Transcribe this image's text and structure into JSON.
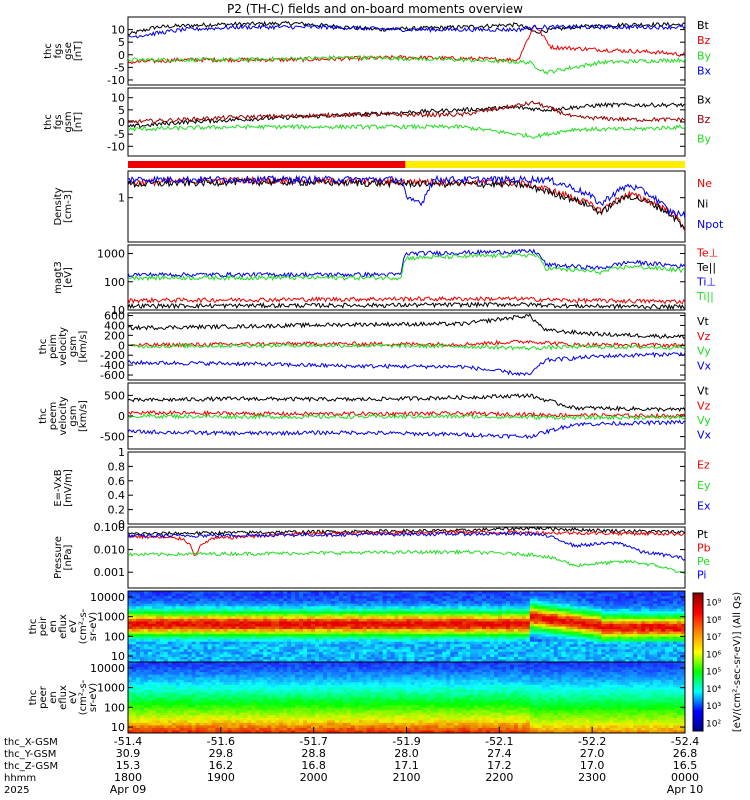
{
  "title": "P2 (TH-C) fields and on-board moments overview",
  "colors": {
    "black": "#000000",
    "red": "#ee0000",
    "green": "#22dd22",
    "blue": "#0000ee",
    "dark_red": "#990000",
    "yellow": "#ffee00"
  },
  "chart_data": [
    {
      "type": "line",
      "name": "fgs_gse",
      "ylabel": [
        "thc",
        "fgs",
        "gse",
        "[nT]"
      ],
      "ylim": [
        -12,
        15
      ],
      "yticks": [
        -10,
        -5,
        0,
        5,
        10
      ],
      "series": [
        {
          "name": "Bt",
          "color": "black",
          "x": [
            0,
            0.05,
            0.15,
            0.3,
            0.45,
            0.6,
            0.7,
            0.73,
            0.8,
            0.9,
            1.0
          ],
          "y": [
            8,
            11,
            12,
            12.5,
            10,
            11,
            12,
            9,
            11,
            12,
            12
          ]
        },
        {
          "name": "Bz",
          "color": "red",
          "x": [
            0,
            0.1,
            0.3,
            0.5,
            0.7,
            0.73,
            0.76,
            0.85,
            0.95,
            1.0
          ],
          "y": [
            -3,
            -2,
            -2,
            -1,
            -2,
            12,
            3,
            2,
            1,
            0
          ]
        },
        {
          "name": "By",
          "color": "green",
          "x": [
            0,
            0.2,
            0.4,
            0.6,
            0.72,
            0.75,
            0.85,
            1.0
          ],
          "y": [
            -2,
            -2,
            -1,
            -2,
            -3,
            -7,
            -3,
            -2
          ]
        },
        {
          "name": "Bx",
          "color": "blue",
          "x": [
            0,
            0.1,
            0.2,
            0.35,
            0.5,
            0.7,
            0.73,
            0.8,
            0.9,
            1.0
          ],
          "y": [
            7,
            10,
            11,
            11,
            10,
            10,
            11,
            11,
            11,
            11
          ]
        }
      ]
    },
    {
      "type": "line",
      "name": "fgs_gsm",
      "ylabel": [
        "thc",
        "fgs",
        "gsm",
        "[nT]"
      ],
      "ylim": [
        -14,
        14
      ],
      "yticks": [
        -10,
        -5,
        0,
        5,
        10
      ],
      "series": [
        {
          "name": "Bx",
          "color": "black",
          "x": [
            0,
            0.1,
            0.3,
            0.5,
            0.7,
            0.75,
            0.85,
            1.0
          ],
          "y": [
            -2,
            0,
            2,
            4,
            6,
            5,
            7,
            7
          ]
        },
        {
          "name": "Bz",
          "color": "dark_red",
          "x": [
            0,
            0.2,
            0.4,
            0.6,
            0.73,
            0.8,
            0.9,
            1.0
          ],
          "y": [
            0,
            2,
            3,
            3,
            8,
            2,
            1,
            1
          ]
        },
        {
          "name": "By",
          "color": "green",
          "x": [
            0,
            0.2,
            0.4,
            0.6,
            0.73,
            0.8,
            0.9,
            1.0
          ],
          "y": [
            -3,
            -2,
            -2,
            -2,
            -6,
            -3,
            -3,
            -2
          ]
        }
      ]
    },
    {
      "type": "bar",
      "name": "mode_bar",
      "segments": [
        {
          "x0": 0,
          "x1": 0.498,
          "color": "red"
        },
        {
          "x0": 0.498,
          "x1": 1.0,
          "color": "yellow"
        }
      ]
    },
    {
      "type": "line",
      "name": "density",
      "ylabel": [
        "Density",
        "[cm-3]"
      ],
      "scale": "log",
      "ylim": [
        0.1,
        4
      ],
      "yticks": [
        1
      ],
      "series": [
        {
          "name": "Ne",
          "color": "red",
          "x": [
            0,
            0.2,
            0.5,
            0.7,
            0.78,
            0.85,
            0.9,
            1.0
          ],
          "y": [
            2.2,
            2.5,
            2.3,
            2.2,
            1.2,
            0.5,
            1.2,
            0.2
          ]
        },
        {
          "name": "Ni",
          "color": "black",
          "x": [
            0,
            0.2,
            0.5,
            0.7,
            0.78,
            0.85,
            0.9,
            1.0
          ],
          "y": [
            2.0,
            2.3,
            2.1,
            2.0,
            1.1,
            0.45,
            1.1,
            0.18
          ]
        },
        {
          "name": "Npot",
          "color": "blue",
          "x": [
            0,
            0.49,
            0.5,
            0.53,
            0.55,
            0.75,
            0.85,
            0.9,
            0.97,
            1.0
          ],
          "y": [
            2.6,
            2.6,
            0.9,
            0.8,
            2.6,
            2.6,
            0.7,
            1.9,
            0.5,
            0.4
          ]
        }
      ]
    },
    {
      "type": "line",
      "name": "temperature",
      "ylabel": [
        "magt3",
        "[eV]"
      ],
      "scale": "log",
      "ylim": [
        10,
        2000
      ],
      "yticks": [
        10,
        100,
        1000
      ],
      "series": [
        {
          "name": "Te⊥",
          "color": "red",
          "x": [
            0,
            0.5,
            0.7,
            0.8,
            1.0
          ],
          "y": [
            22,
            25,
            25,
            22,
            20
          ]
        },
        {
          "name": "Te||",
          "color": "black",
          "x": [
            0,
            0.5,
            0.7,
            0.8,
            1.0
          ],
          "y": [
            14,
            15,
            16,
            14,
            13
          ]
        },
        {
          "name": "Ti⊥",
          "color": "blue",
          "x": [
            0,
            0.49,
            0.5,
            0.73,
            0.75,
            0.85,
            0.9,
            1.0
          ],
          "y": [
            180,
            180,
            1000,
            1200,
            400,
            300,
            500,
            350
          ]
        },
        {
          "name": "Ti||",
          "color": "green",
          "x": [
            0,
            0.49,
            0.5,
            0.73,
            0.75,
            0.85,
            0.9,
            1.0
          ],
          "y": [
            140,
            140,
            700,
            900,
            300,
            220,
            350,
            250
          ]
        }
      ]
    },
    {
      "type": "line",
      "name": "peim_velocity",
      "ylabel": [
        "thc",
        "peim",
        "velocity",
        "gsm",
        "[km/s]"
      ],
      "ylim": [
        -700,
        650
      ],
      "yticks": [
        -600,
        -400,
        -200,
        0,
        200,
        400,
        600
      ],
      "series": [
        {
          "name": "Vt",
          "color": "black",
          "x": [
            0,
            0.2,
            0.4,
            0.6,
            0.72,
            0.75,
            0.85,
            1.0
          ],
          "y": [
            350,
            380,
            420,
            430,
            600,
            300,
            220,
            170
          ]
        },
        {
          "name": "Vz",
          "color": "red",
          "x": [
            0,
            0.3,
            0.6,
            0.72,
            0.8,
            1.0
          ],
          "y": [
            0,
            30,
            20,
            80,
            10,
            0
          ]
        },
        {
          "name": "Vy",
          "color": "green",
          "x": [
            0,
            0.3,
            0.6,
            0.72,
            0.8,
            1.0
          ],
          "y": [
            -20,
            0,
            -20,
            -60,
            -30,
            -40
          ]
        },
        {
          "name": "Vx",
          "color": "blue",
          "x": [
            0,
            0.2,
            0.4,
            0.6,
            0.72,
            0.75,
            0.85,
            1.0
          ],
          "y": [
            -350,
            -370,
            -420,
            -430,
            -600,
            -300,
            -220,
            -170
          ]
        }
      ]
    },
    {
      "type": "line",
      "name": "peem_velocity",
      "ylabel": [
        "thc",
        "peem",
        "velocity",
        "gsm",
        "[km/s]"
      ],
      "ylim": [
        -800,
        800
      ],
      "yticks": [
        -500,
        0,
        500
      ],
      "series": [
        {
          "name": "Vt",
          "color": "black",
          "x": [
            0,
            0.2,
            0.4,
            0.6,
            0.72,
            0.8,
            1.0
          ],
          "y": [
            380,
            420,
            400,
            450,
            500,
            200,
            150
          ]
        },
        {
          "name": "Vz",
          "color": "red",
          "x": [
            0,
            0.3,
            0.6,
            0.8,
            1.0
          ],
          "y": [
            80,
            50,
            60,
            20,
            0
          ]
        },
        {
          "name": "Vy",
          "color": "green",
          "x": [
            0,
            0.3,
            0.6,
            0.8,
            1.0
          ],
          "y": [
            0,
            -20,
            -10,
            -40,
            -30
          ]
        },
        {
          "name": "Vx",
          "color": "blue",
          "x": [
            0,
            0.2,
            0.4,
            0.6,
            0.72,
            0.8,
            1.0
          ],
          "y": [
            -380,
            -420,
            -400,
            -450,
            -500,
            -200,
            -150
          ]
        }
      ]
    },
    {
      "type": "line",
      "name": "efield",
      "ylabel": [
        "E=-VxB",
        "[mV/m]"
      ],
      "ylim": [
        0,
        1.0
      ],
      "yticks": [
        0.0,
        0.2,
        0.4,
        0.6,
        0.8,
        1.0
      ],
      "series": [
        {
          "name": "Ez",
          "color": "red",
          "x": [],
          "y": []
        },
        {
          "name": "Ey",
          "color": "green",
          "x": [],
          "y": []
        },
        {
          "name": "Ex",
          "color": "blue",
          "x": [],
          "y": []
        }
      ]
    },
    {
      "type": "line",
      "name": "pressure",
      "ylabel": [
        "Pressure",
        "[nPa]"
      ],
      "scale": "log",
      "ylim": [
        0.0002,
        0.1
      ],
      "yticks": [
        0.001,
        0.01,
        0.1
      ],
      "ytick_labels": [
        "0.001",
        "0.010",
        "0.100"
      ],
      "series": [
        {
          "name": "Pt",
          "color": "black",
          "x": [
            0,
            0.3,
            0.6,
            0.73,
            0.85,
            1.0
          ],
          "y": [
            0.05,
            0.06,
            0.07,
            0.09,
            0.07,
            0.06
          ]
        },
        {
          "name": "Pb",
          "color": "red",
          "x": [
            0,
            0.1,
            0.12,
            0.15,
            0.3,
            0.6,
            1.0
          ],
          "y": [
            0.04,
            0.03,
            0.005,
            0.03,
            0.05,
            0.06,
            0.05
          ]
        },
        {
          "name": "Pe",
          "color": "green",
          "x": [
            0,
            0.3,
            0.6,
            0.73,
            0.8,
            0.9,
            1.0
          ],
          "y": [
            0.006,
            0.007,
            0.008,
            0.006,
            0.002,
            0.003,
            0.0008
          ]
        },
        {
          "name": "Pi",
          "color": "blue",
          "x": [
            0,
            0.3,
            0.6,
            0.73,
            0.8,
            0.88,
            0.92,
            1.0
          ],
          "y": [
            0.04,
            0.045,
            0.05,
            0.05,
            0.015,
            0.02,
            0.008,
            0.004
          ]
        }
      ]
    },
    {
      "type": "heatmap",
      "name": "peir_spectrogram",
      "ylabel": [
        "thc",
        "peir",
        "en",
        "eflux",
        "eV",
        "(cm²-s-",
        "sr-eV)"
      ],
      "scale": "log",
      "ylim": [
        5,
        20000
      ],
      "yticks": [
        10,
        100,
        1000,
        10000
      ]
    },
    {
      "type": "heatmap",
      "name": "peer_spectrogram",
      "ylabel": [
        "thc",
        "peer",
        "en",
        "eflux",
        "eV",
        "(cm²-s-",
        "sr-eV)"
      ],
      "scale": "log",
      "ylim": [
        5,
        20000
      ],
      "yticks": [
        10,
        100,
        1000,
        10000
      ]
    }
  ],
  "colorbar": {
    "label": "[eV/(cm²-sec-sr-eV)] (All Qs)",
    "ticks": [
      "10²",
      "10³",
      "10⁴",
      "10⁵",
      "10⁶",
      "10⁷",
      "10⁸",
      "10⁹"
    ]
  },
  "x_axis": {
    "row_labels": [
      "thc_X-GSM",
      "thc_Y-GSM",
      "thc_Z-GSM",
      "hhmm",
      "2025"
    ],
    "ticks": [
      {
        "x": -51.4,
        "y": 30.9,
        "z": 15.3,
        "hhmm": "1800",
        "date": "Apr 09"
      },
      {
        "x": -51.6,
        "y": 29.8,
        "z": 16.2,
        "hhmm": "1900",
        "date": ""
      },
      {
        "x": -51.7,
        "y": 28.8,
        "z": 16.8,
        "hhmm": "2000",
        "date": ""
      },
      {
        "x": -51.9,
        "y": 28.0,
        "z": 17.1,
        "hhmm": "2100",
        "date": ""
      },
      {
        "x": -52.1,
        "y": 27.4,
        "z": 17.2,
        "hhmm": "2200",
        "date": ""
      },
      {
        "x": -52.2,
        "y": 27.0,
        "z": 17.0,
        "hhmm": "2300",
        "date": ""
      },
      {
        "x": -52.4,
        "y": 26.8,
        "z": 16.5,
        "hhmm": "0000",
        "date": "Apr 10"
      }
    ]
  }
}
